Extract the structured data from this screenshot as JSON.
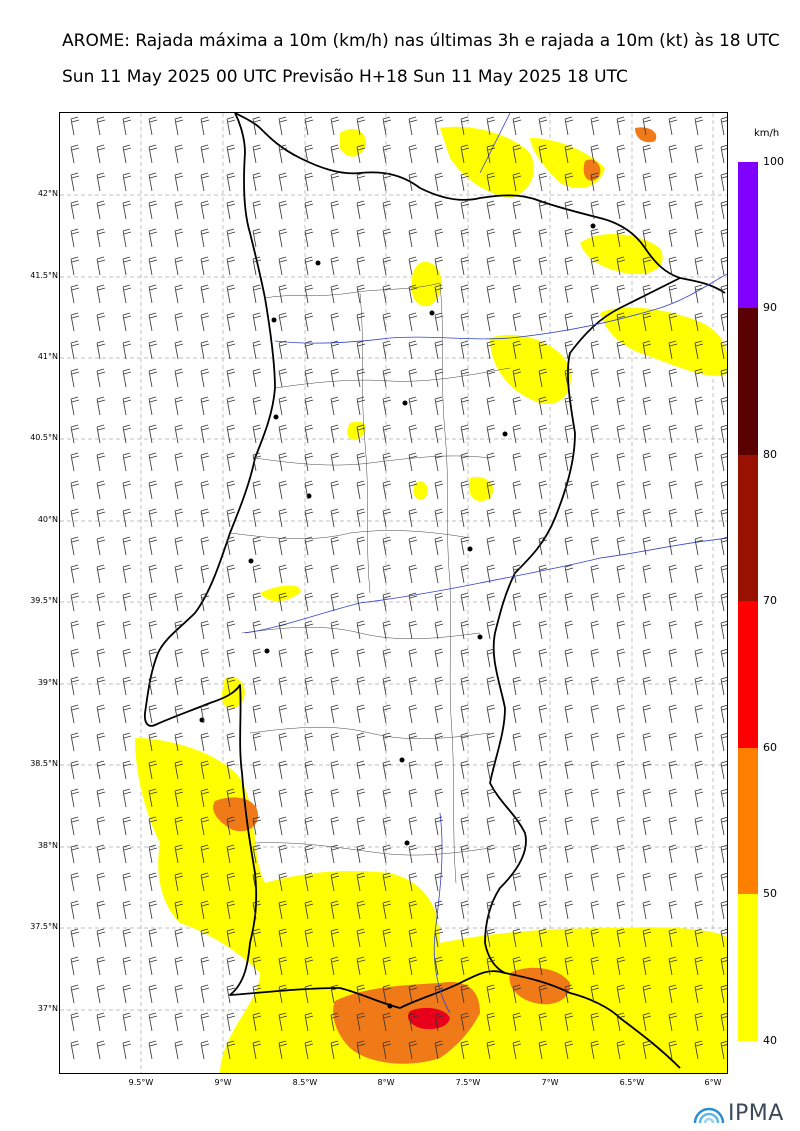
{
  "title_line1": "AROME: Rajada máxima a 10m (km/h) nas últimas 3h e rajada a 10m (kt) às 18 UTC",
  "title_line2": "Sun 11 May 2025 00 UTC Previsão H+18 Sun 11 May 2025 18 UTC",
  "lat_labels": [
    "42°N",
    "41.5°N",
    "41°N",
    "40.5°N",
    "40°N",
    "39.5°N",
    "39°N",
    "38.5°N",
    "38°N",
    "37.5°N",
    "37°N"
  ],
  "lon_labels": [
    "9.5°W",
    "9°W",
    "8.5°W",
    "8°W",
    "7.5°W",
    "7°W",
    "6.5°W",
    "6°W"
  ],
  "colorbar": {
    "unit": "km/h",
    "labels": [
      "100",
      "90",
      "80",
      "70",
      "60",
      "50",
      "40"
    ],
    "colors": [
      "#8000ff",
      "#5a0000",
      "#991100",
      "#ff0000",
      "#ff8000",
      "#ffff00"
    ]
  },
  "colors": {
    "light_gust": "#ffff00",
    "moderate_gust": "#f07a18",
    "strong_gust": "#e8001a",
    "coast": "#000000",
    "river": "#3344cc"
  },
  "logo": {
    "text": "IPMA"
  }
}
